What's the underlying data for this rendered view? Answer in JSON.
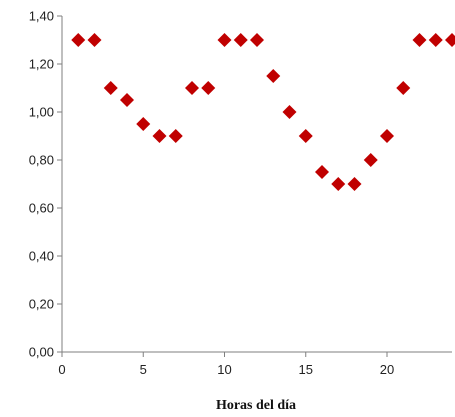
{
  "chart_data": {
    "type": "scatter",
    "title": "",
    "xlabel": "Horas del día",
    "ylabel": "",
    "xlim": [
      0,
      24
    ],
    "ylim": [
      0,
      1.4
    ],
    "x_ticks": [
      0,
      5,
      10,
      15,
      20
    ],
    "x_tick_labels": [
      "0",
      "5",
      "10",
      "15",
      "20"
    ],
    "y_ticks": [
      0,
      0.2,
      0.4,
      0.6,
      0.8,
      1.0,
      1.2,
      1.4
    ],
    "y_tick_labels": [
      "0,00",
      "0,20",
      "0,40",
      "0,60",
      "0,80",
      "1,00",
      "1,20",
      "1,40"
    ],
    "grid": false,
    "marker": "diamond",
    "series": [
      {
        "color": "#c00000",
        "points": [
          {
            "x": 1,
            "y": 1.3
          },
          {
            "x": 2,
            "y": 1.3
          },
          {
            "x": 3,
            "y": 1.1
          },
          {
            "x": 4,
            "y": 1.05
          },
          {
            "x": 5,
            "y": 0.95
          },
          {
            "x": 6,
            "y": 0.9
          },
          {
            "x": 7,
            "y": 0.9
          },
          {
            "x": 8,
            "y": 1.1
          },
          {
            "x": 9,
            "y": 1.1
          },
          {
            "x": 10,
            "y": 1.3
          },
          {
            "x": 11,
            "y": 1.3
          },
          {
            "x": 12,
            "y": 1.3
          },
          {
            "x": 13,
            "y": 1.15
          },
          {
            "x": 14,
            "y": 1.0
          },
          {
            "x": 15,
            "y": 0.9
          },
          {
            "x": 16,
            "y": 0.75
          },
          {
            "x": 17,
            "y": 0.7
          },
          {
            "x": 18,
            "y": 0.7
          },
          {
            "x": 19,
            "y": 0.8
          },
          {
            "x": 20,
            "y": 0.9
          },
          {
            "x": 21,
            "y": 1.1
          },
          {
            "x": 22,
            "y": 1.3
          },
          {
            "x": 23,
            "y": 1.3
          },
          {
            "x": 24,
            "y": 1.3
          }
        ]
      }
    ]
  }
}
